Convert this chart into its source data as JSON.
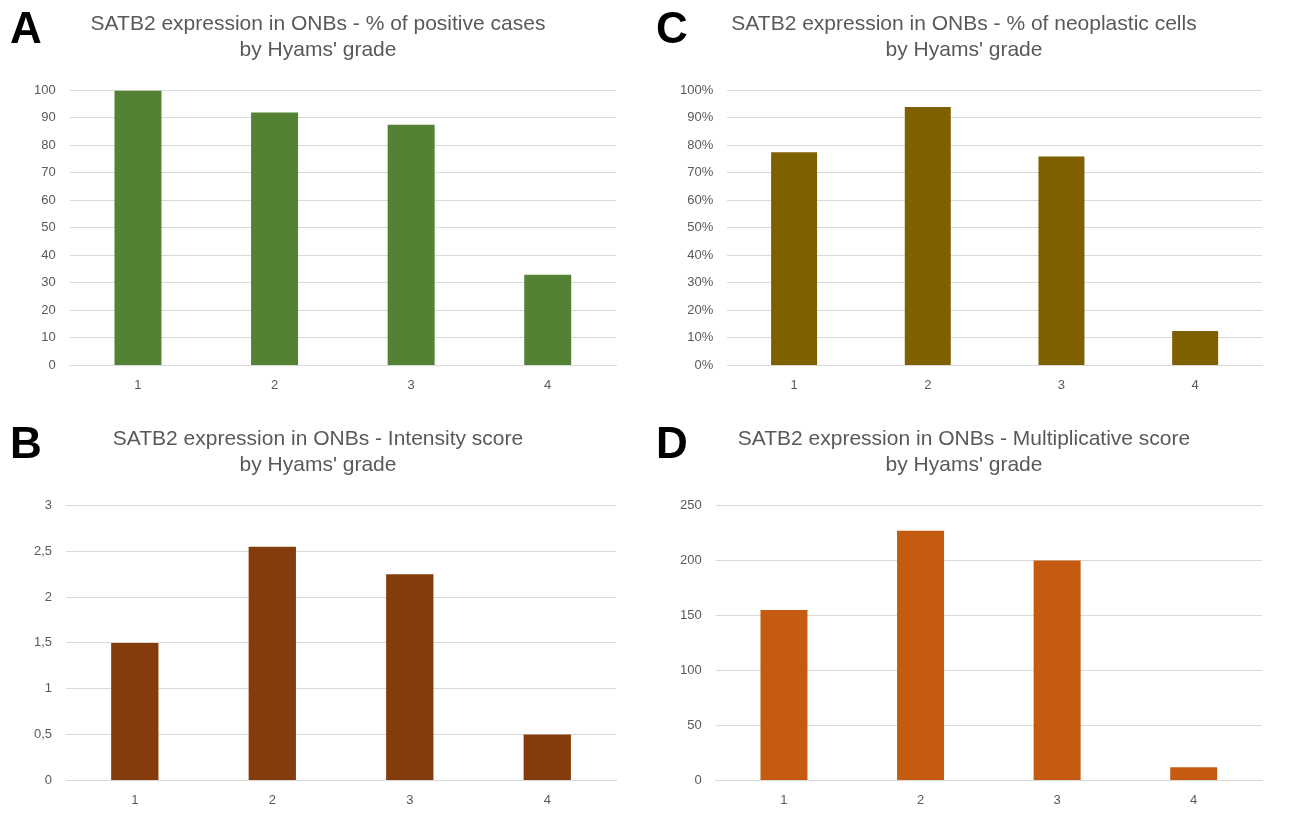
{
  "chart_data": [
    {
      "type": "bar",
      "title": "SATB2 expression in ONBs - % of positive cases\nby Hyams' grade",
      "annotations": [
        "A"
      ],
      "categories": [
        "1",
        "2",
        "3",
        "4"
      ],
      "values": [
        100,
        92,
        87.5,
        33
      ],
      "color": "#548235",
      "ylim": [
        0,
        100
      ],
      "yticks": [
        0,
        10,
        20,
        30,
        40,
        50,
        60,
        70,
        80,
        90,
        100
      ],
      "grid": "y",
      "legend": false
    },
    {
      "type": "bar",
      "title": "SATB2 expression in ONBs - % of neoplastic cells\nby Hyams' grade",
      "annotations": [
        "C"
      ],
      "categories": [
        "1",
        "2",
        "3",
        "4"
      ],
      "values": [
        77.5,
        94,
        76,
        12.5
      ],
      "color": "#7f6000",
      "ylim": [
        0,
        100
      ],
      "yticks": [
        {
          "value": 0,
          "label": "0%"
        },
        {
          "value": 10,
          "label": "10%"
        },
        {
          "value": 20,
          "label": "20%"
        },
        {
          "value": 30,
          "label": "30%"
        },
        {
          "value": 40,
          "label": "40%"
        },
        {
          "value": 50,
          "label": "50%"
        },
        {
          "value": 60,
          "label": "60%"
        },
        {
          "value": 70,
          "label": "70%"
        },
        {
          "value": 80,
          "label": "80%"
        },
        {
          "value": 90,
          "label": "90%"
        },
        {
          "value": 100,
          "label": "100%"
        }
      ],
      "grid": "y",
      "legend": false
    },
    {
      "type": "bar",
      "title": "SATB2 expression in ONBs - Intensity score\nby Hyams' grade",
      "annotations": [
        "B"
      ],
      "categories": [
        "1",
        "2",
        "3",
        "4"
      ],
      "values": [
        1.5,
        2.55,
        2.25,
        0.5
      ],
      "color": "#843c0c",
      "ylim": [
        0,
        3
      ],
      "yticks": [
        0,
        {
          "value": 0.5,
          "label": "0,5"
        },
        1,
        {
          "value": 1.5,
          "label": "1,5"
        },
        2,
        {
          "value": 2.5,
          "label": "2,5"
        },
        3
      ],
      "grid": "y",
      "legend": false
    },
    {
      "type": "bar",
      "title": "SATB2 expression in ONBs - Multiplicative score\nby Hyams' grade",
      "annotations": [
        "D"
      ],
      "categories": [
        "1",
        "2",
        "3",
        "4"
      ],
      "values": [
        155,
        227,
        200,
        12
      ],
      "color": "#c55a11",
      "ylim": [
        0,
        250
      ],
      "yticks": [
        0,
        50,
        100,
        150,
        200,
        250
      ],
      "grid": "y",
      "legend": false
    }
  ]
}
